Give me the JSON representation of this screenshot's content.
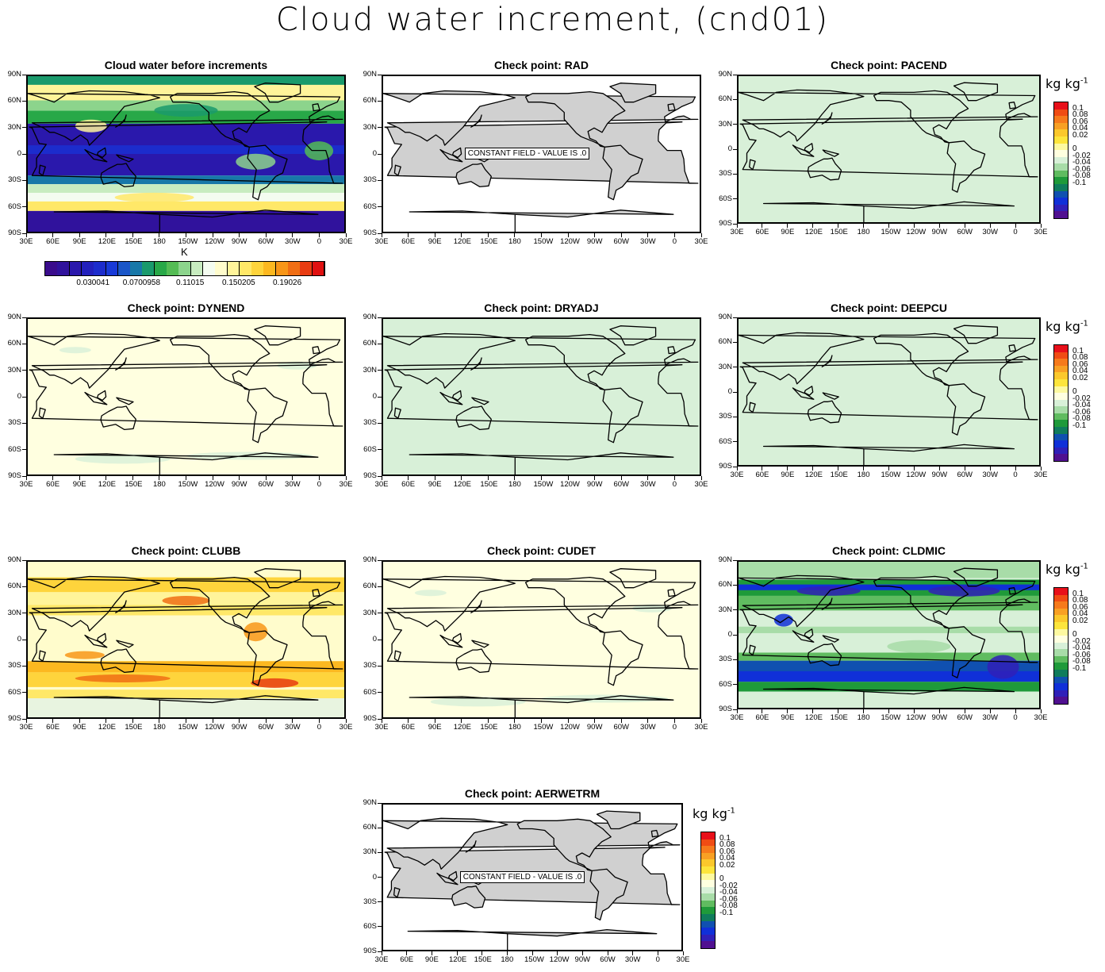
{
  "title": "Cloud water increment, (cnd01)",
  "lat_labels": [
    "90N",
    "60N",
    "30N",
    "0",
    "30S",
    "60S",
    "90S"
  ],
  "lon_labels": [
    "30E",
    "60E",
    "90E",
    "120E",
    "150E",
    "180",
    "150W",
    "120W",
    "90W",
    "60W",
    "30W",
    "0",
    "30E"
  ],
  "unit_base": "kg kg",
  "unit_exp": "-1",
  "legend_labels": [
    "0.1",
    "0.08",
    "0.06",
    "0.04",
    "0.02",
    "0",
    "-0.02",
    "-0.04",
    "-0.06",
    "-0.08",
    "-0.1"
  ],
  "legend_colors": [
    "#e8101a",
    "#f04c14",
    "#f67a1c",
    "#f8a024",
    "#fbc82c",
    "#fde53c",
    "#fdf9a0",
    "#ffffe0",
    "#d8f0d8",
    "#a8dca8",
    "#60bc60",
    "#1f9a3a",
    "#107c5c",
    "#1050b0",
    "#1030d8",
    "#3020b8",
    "#501090"
  ],
  "cw_bar_labels": [
    "0.030041",
    "0.0700958",
    "0.11015",
    "0.150205",
    "0.19026"
  ],
  "cw_bar_stray": "K",
  "cw_colors": [
    "#3a0c8c",
    "#30129c",
    "#2a18ac",
    "#2220bc",
    "#1c2ccc",
    "#183ad8",
    "#1a56c8",
    "#1878a8",
    "#1a9a6c",
    "#28a848",
    "#54bc54",
    "#8cd48c",
    "#c8ecc0",
    "#f4fcf0",
    "#fffccc",
    "#fff49a",
    "#ffe868",
    "#fed43c",
    "#fcb820",
    "#f89618",
    "#f06e14",
    "#e83c12",
    "#e01010"
  ],
  "constant_field_text": "CONSTANT FIELD - VALUE IS .0",
  "panels": [
    {
      "id": "cw",
      "title": "Cloud water before increments",
      "style": "cw"
    },
    {
      "id": "rad",
      "title": "Check point: RAD",
      "style": "const"
    },
    {
      "id": "pacend",
      "title": "Check point: PACEND",
      "style": "pale-green"
    },
    {
      "id": "dynend",
      "title": "Check point: DYNEND",
      "style": "pale-yellow"
    },
    {
      "id": "dryadj",
      "title": "Check point: DRYADJ",
      "style": "pale-green"
    },
    {
      "id": "deepcu",
      "title": "Check point: DEEPCU",
      "style": "pale-green"
    },
    {
      "id": "clubb",
      "title": "Check point: CLUBB",
      "style": "clubb"
    },
    {
      "id": "cudet",
      "title": "Check point: CUDET",
      "style": "pale-yellow"
    },
    {
      "id": "cldmic",
      "title": "Check point: CLDMIC",
      "style": "cldmic"
    },
    {
      "id": "aerwetrm",
      "title": "Check point: AERWETRM",
      "style": "const"
    }
  ]
}
